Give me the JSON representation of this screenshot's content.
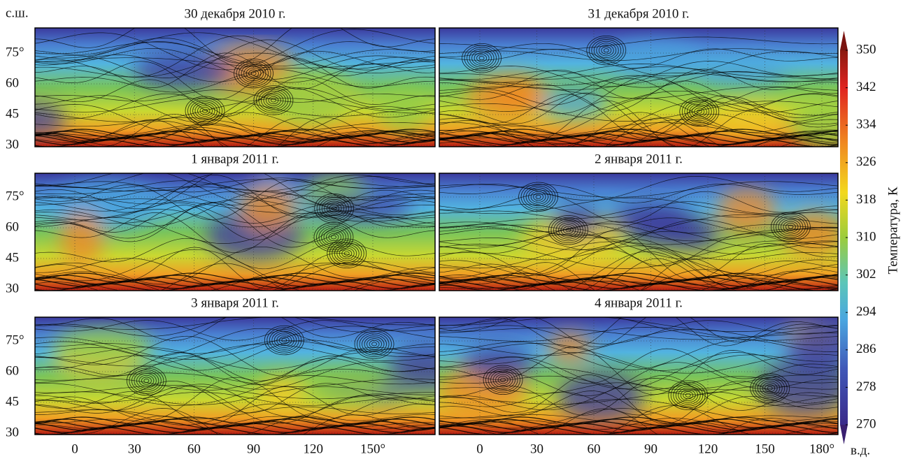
{
  "panels": [
    {
      "title": "30 декабря 2010 г."
    },
    {
      "title": "31 декабря 2010 г."
    },
    {
      "title": "1 января 2011 г."
    },
    {
      "title": "2 января 2011 г."
    },
    {
      "title": "3 января 2011 г."
    },
    {
      "title": "4 января 2011 г."
    }
  ],
  "lat_axis": {
    "label": "с.ш.",
    "ticks": [
      {
        "value": 75,
        "label": "75°"
      },
      60,
      45,
      30
    ]
  },
  "lon_axis_left": {
    "ticks": [
      0,
      30,
      60,
      90,
      120,
      {
        "value": 150,
        "label": "150°"
      }
    ]
  },
  "lon_axis_right": {
    "label": "в.д.",
    "ticks": [
      0,
      30,
      60,
      90,
      120,
      150,
      {
        "value": 180,
        "label": "180°"
      }
    ]
  },
  "colorbar": {
    "label": "Температура, К",
    "ticks": [
      270,
      278,
      286,
      294,
      302,
      310,
      318,
      326,
      334,
      342,
      350
    ]
  }
}
